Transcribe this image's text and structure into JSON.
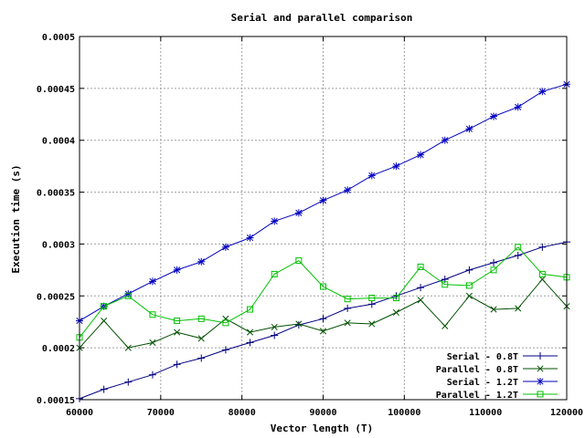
{
  "chart_data": {
    "type": "line",
    "title": "Serial and parallel comparison",
    "xlabel": "Vector length (T)",
    "ylabel": "Execution time (s)",
    "xlim": [
      60000,
      120000
    ],
    "ylim": [
      0.00015,
      0.0005
    ],
    "xticks": [
      60000,
      70000,
      80000,
      90000,
      100000,
      110000,
      120000
    ],
    "xtick_labels": [
      "60000",
      "70000",
      "80000",
      "90000",
      "100000",
      "110000",
      "120000"
    ],
    "yticks": [
      0.00015,
      0.0002,
      0.00025,
      0.0003,
      0.00035,
      0.0004,
      0.00045,
      0.0005
    ],
    "ytick_labels": [
      "0.00015",
      "0.0002",
      "0.00025",
      "0.0003",
      "0.00035",
      "0.0004",
      "0.00045",
      "0.0005"
    ],
    "grid": true,
    "legend_position": "bottom-right",
    "x": [
      60000,
      63000,
      66000,
      69000,
      72000,
      75000,
      78000,
      81000,
      84000,
      87000,
      90000,
      93000,
      96000,
      99000,
      102000,
      105000,
      108000,
      111000,
      114000,
      117000,
      120000
    ],
    "series": [
      {
        "name": "Serial - 0.8T",
        "color": "#000080",
        "marker": "plus",
        "values": [
          0.000151,
          0.00016,
          0.000167,
          0.000174,
          0.000184,
          0.00019,
          0.000198,
          0.000205,
          0.000212,
          0.000222,
          0.000228,
          0.000238,
          0.000242,
          0.00025,
          0.000258,
          0.000266,
          0.000275,
          0.000282,
          0.000289,
          0.000297,
          0.000302
        ]
      },
      {
        "name": "Parallel - 0.8T",
        "color": "#005000",
        "marker": "cross",
        "values": [
          0.0002,
          0.000226,
          0.0002,
          0.000205,
          0.000215,
          0.000209,
          0.000228,
          0.000215,
          0.00022,
          0.000223,
          0.000216,
          0.000224,
          0.000223,
          0.000234,
          0.000246,
          0.000221,
          0.00025,
          0.000237,
          0.000238,
          0.000266,
          0.00024
        ]
      },
      {
        "name": "Serial - 1.2T",
        "color": "#0000c0",
        "marker": "star",
        "values": [
          0.000226,
          0.00024,
          0.000252,
          0.000264,
          0.000275,
          0.000283,
          0.000297,
          0.000306,
          0.000322,
          0.00033,
          0.000342,
          0.000352,
          0.000366,
          0.000375,
          0.000386,
          0.0004,
          0.000411,
          0.000423,
          0.000432,
          0.000447,
          0.000454
        ]
      },
      {
        "name": "Parallel - 1.2T",
        "color": "#00c000",
        "marker": "square",
        "values": [
          0.00021,
          0.00024,
          0.00025,
          0.000232,
          0.000226,
          0.000228,
          0.000224,
          0.000237,
          0.000271,
          0.000284,
          0.000259,
          0.000247,
          0.000248,
          0.000248,
          0.000278,
          0.000261,
          0.00026,
          0.000275,
          0.000297,
          0.000271,
          0.000268
        ]
      }
    ]
  }
}
